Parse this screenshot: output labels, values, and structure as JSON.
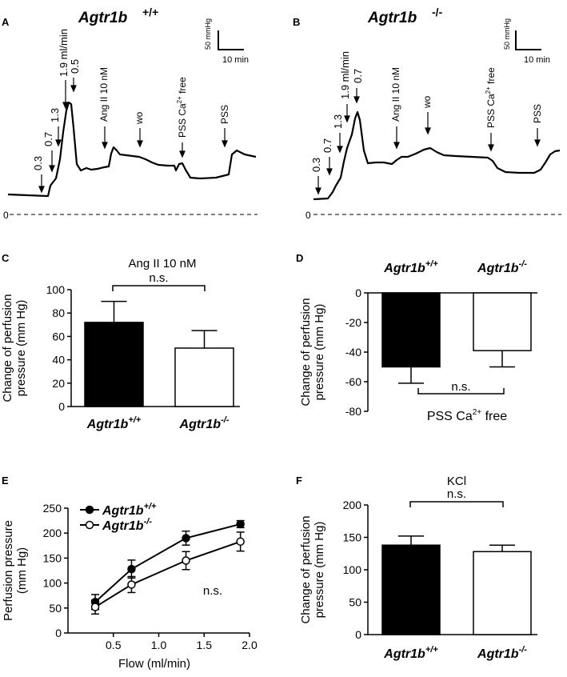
{
  "traces": {
    "A": {
      "panel": "A",
      "title_gene": "Agtr1b",
      "title_geno": "+/+",
      "scale_y": "50 mmHg",
      "scale_x": "10 min",
      "zero": "0",
      "flow_labels": [
        "0.3",
        "0.7",
        "1.3",
        "1.9 ml/min",
        "0.5"
      ],
      "angii": "Ang II 10 nM",
      "wo": "wo",
      "pss_ca_prefix": "PSS Ca",
      "pss_ca_sup": "2+",
      "pss_ca_suffix": " free",
      "pss": "PSS"
    },
    "B": {
      "panel": "B",
      "title_gene": "Agtr1b",
      "title_geno": "-/-",
      "scale_y": "50 mmHg",
      "scale_x": "10 min",
      "zero": "0",
      "flow_labels": [
        "0.3",
        "0.7",
        "1.3",
        "1.9 ml/min",
        "0.7"
      ],
      "angii": "Ang II 10 nM",
      "wo": "wo",
      "pss_ca_prefix": "PSS Ca",
      "pss_ca_sup": "2+",
      "pss_ca_suffix": " free",
      "pss": "PSS"
    }
  },
  "chart_data": [
    {
      "id": "C",
      "type": "bar",
      "title": "Ang II 10 nM",
      "ylabel_line1": "Change of perfusion",
      "ylabel_line2": "pressure (mm Hg)",
      "categories": [
        "Agtr1b +/+",
        "Agtr1b -/-"
      ],
      "cat_gene": "Agtr1b",
      "cat_geno": [
        "+/+",
        "-/-"
      ],
      "values": [
        72,
        50
      ],
      "errors": [
        18,
        15
      ],
      "fill": [
        "#000000",
        "#ffffff"
      ],
      "ylim": [
        0,
        100
      ],
      "yticks": [
        "0",
        "20",
        "40",
        "60",
        "80",
        "100"
      ],
      "sig": "n.s."
    },
    {
      "id": "D",
      "type": "bar",
      "title": "PSS Ca2+ free",
      "title_prefix": "PSS Ca",
      "title_sup": "2+",
      "title_suffix": " free",
      "ylabel_line1": "Change of perfusion",
      "ylabel_line2": "pressure (mm Hg)",
      "categories": [
        "Agtr1b +/+",
        "Agtr1b -/-"
      ],
      "cat_gene": "Agtr1b",
      "cat_geno": [
        "+/+",
        "-/-"
      ],
      "values": [
        -50,
        -39
      ],
      "errors": [
        11,
        11
      ],
      "fill": [
        "#000000",
        "#ffffff"
      ],
      "ylim": [
        -80,
        0
      ],
      "yticks": [
        "-80",
        "-60",
        "-40",
        "-20",
        "0"
      ],
      "sig": "n.s."
    },
    {
      "id": "E",
      "type": "line",
      "xlabel": "Flow (ml/min)",
      "ylabel_line1": "Perfusion pressure",
      "ylabel_line2": "(mm Hg)",
      "x": [
        0.3,
        0.7,
        1.3,
        1.9
      ],
      "series": [
        {
          "name": "Agtr1b +/+",
          "gene": "Agtr1b",
          "geno": "+/+",
          "marker": "filled",
          "values": [
            62,
            128,
            190,
            218
          ],
          "errors": [
            15,
            18,
            14,
            7
          ]
        },
        {
          "name": "Agtr1b -/-",
          "gene": "Agtr1b",
          "geno": "-/-",
          "marker": "open",
          "values": [
            52,
            97,
            145,
            183
          ],
          "errors": [
            14,
            16,
            18,
            19
          ]
        }
      ],
      "xlim": [
        0,
        2.0
      ],
      "xticks": [
        "0.5",
        "1.0",
        "1.5",
        "2.0"
      ],
      "ylim": [
        0,
        250
      ],
      "yticks": [
        "0",
        "50",
        "100",
        "150",
        "200",
        "250"
      ],
      "sig": "n.s."
    },
    {
      "id": "F",
      "type": "bar",
      "title": "KCl",
      "ylabel_line1": "Change of perfusion",
      "ylabel_line2": "pressure (mm Hg)",
      "categories": [
        "Agtr1b +/+",
        "Agtr1b -/-"
      ],
      "cat_gene": "Agtr1b",
      "cat_geno": [
        "+/+",
        "-/-"
      ],
      "values": [
        138,
        128
      ],
      "errors": [
        14,
        10
      ],
      "fill": [
        "#000000",
        "#ffffff"
      ],
      "ylim": [
        0,
        200
      ],
      "yticks": [
        "0",
        "50",
        "100",
        "150",
        "200"
      ],
      "sig": "n.s."
    }
  ]
}
